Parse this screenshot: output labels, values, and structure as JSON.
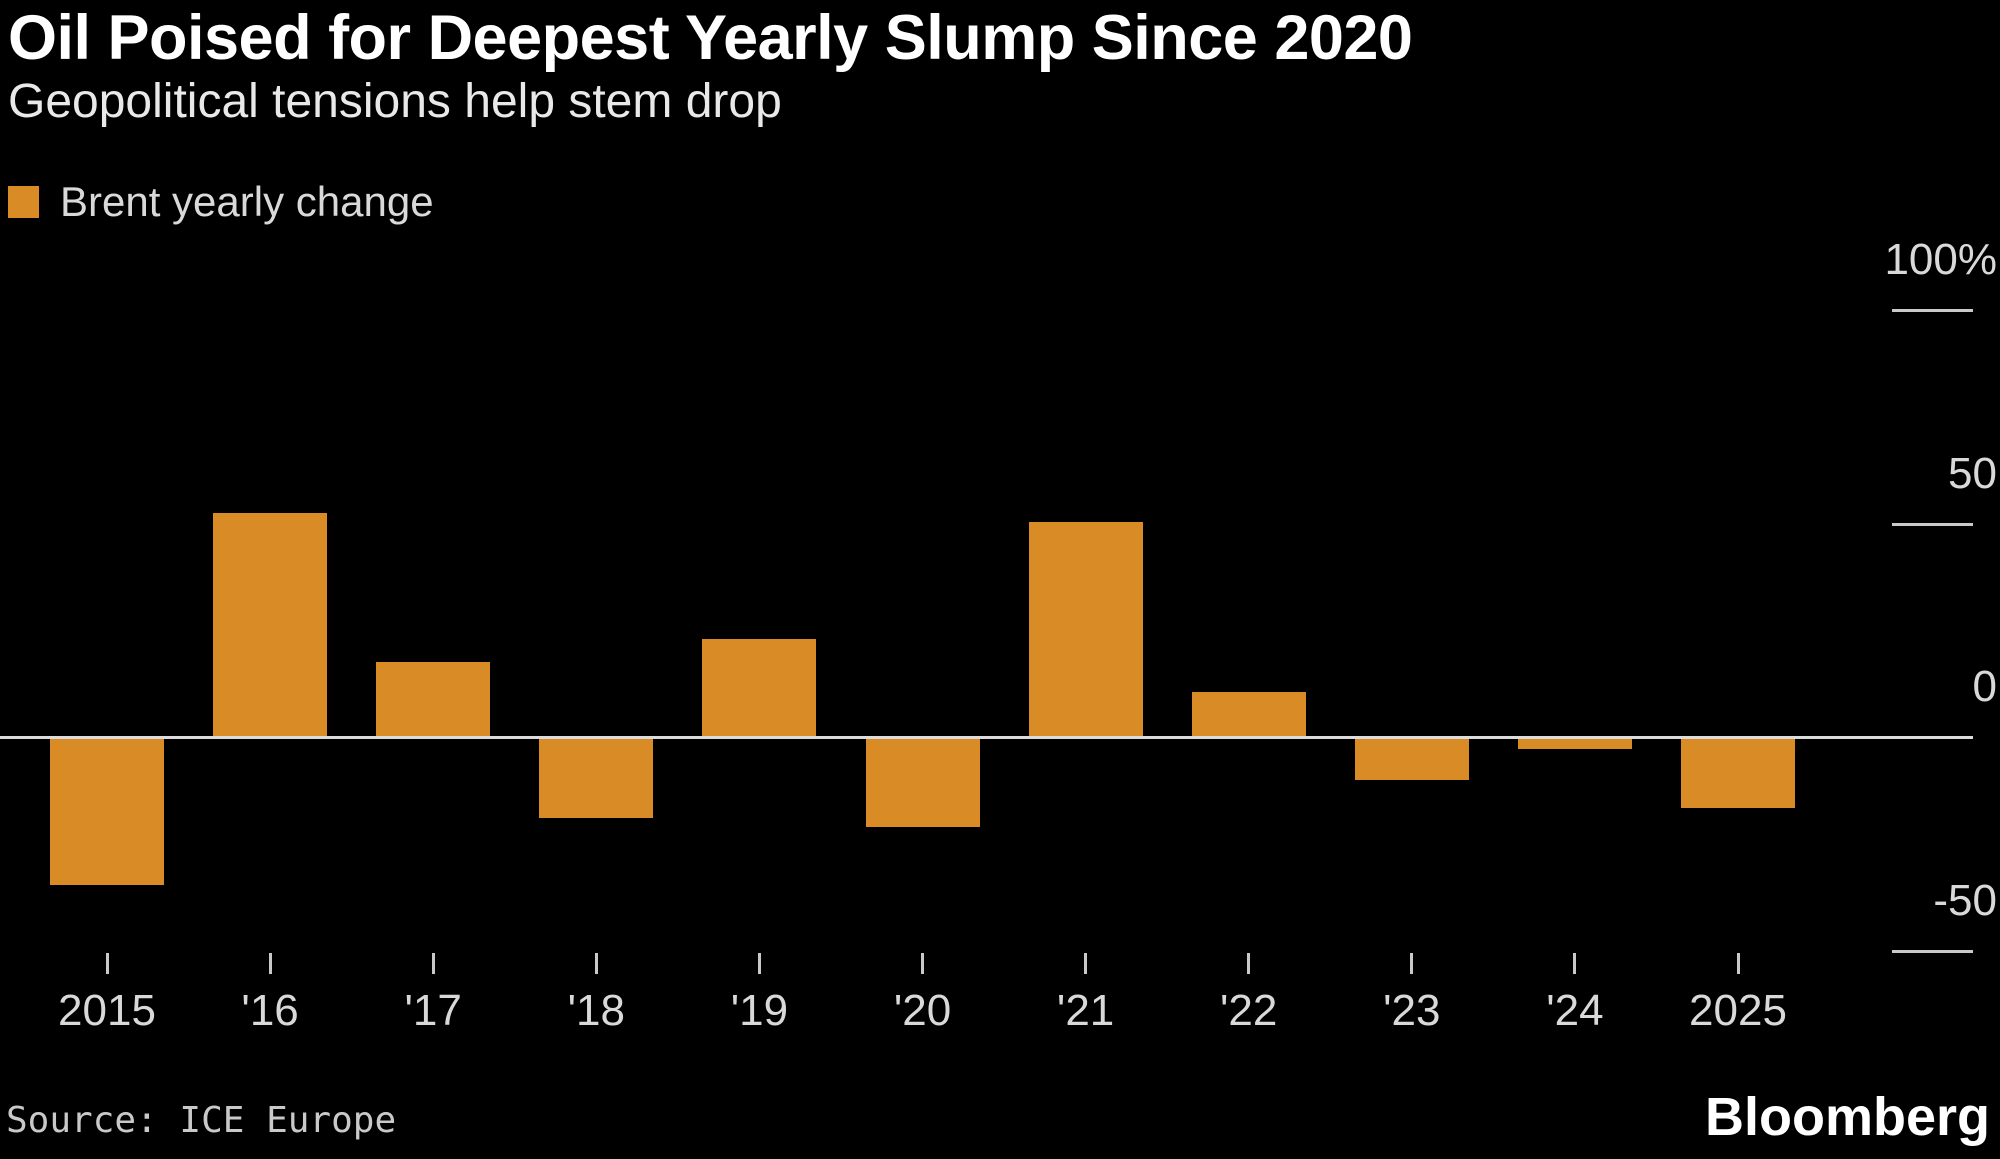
{
  "header": {
    "title": "Oil Poised for Deepest Yearly Slump Since 2020",
    "subtitle": "Geopolitical tensions help stem drop"
  },
  "legend": {
    "label": "Brent yearly change",
    "swatch_color": "#d98b26"
  },
  "chart_data": {
    "type": "bar",
    "title": "Oil Poised for Deepest Yearly Slump Since 2020",
    "subtitle": "Geopolitical tensions help stem drop",
    "categories": [
      "2015",
      "'16",
      "'17",
      "'18",
      "'19",
      "'20",
      "'21",
      "'22",
      "'23",
      "'24",
      "2025"
    ],
    "series": [
      {
        "name": "Brent yearly change",
        "values": [
          -34.5,
          52.5,
          17.6,
          -18.8,
          23.0,
          -20.9,
          50.4,
          10.6,
          -9.9,
          -2.7,
          -16.5
        ]
      }
    ],
    "unit": "percent",
    "xlabel": "",
    "ylabel": "",
    "ylim": [
      -62,
      110
    ],
    "y_ticks": [
      {
        "label": "100%",
        "value": 100
      },
      {
        "label": "50",
        "value": 50
      },
      {
        "label": "0",
        "value": 0
      },
      {
        "label": "-50",
        "value": -50
      }
    ],
    "bar_color": "#d98b26",
    "background_color": "#000000",
    "grid": false,
    "legend_position": "top-left",
    "baseline": 0
  },
  "footer": {
    "source": "Source: ICE Europe",
    "brand": "Bloomberg"
  }
}
